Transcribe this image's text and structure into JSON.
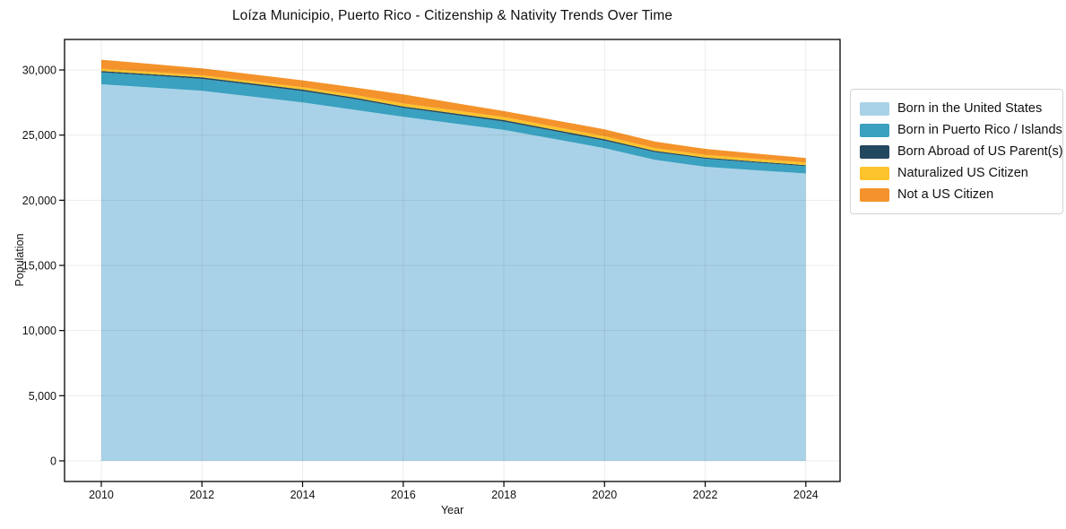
{
  "chart_data": {
    "type": "area",
    "stacked": true,
    "title": "Loíza Municipio, Puerto Rico - Citizenship & Nativity Trends Over Time",
    "xlabel": "Year",
    "ylabel": "Population",
    "grid": true,
    "legend_position": "right-outside",
    "xlim": [
      2009.27,
      2024.68
    ],
    "ylim": [
      -1583,
      32340
    ],
    "xticks": [
      2010,
      2012,
      2014,
      2016,
      2018,
      2020,
      2022,
      2024
    ],
    "yticks": [
      0,
      5000,
      10000,
      15000,
      20000,
      25000,
      30000
    ],
    "x": [
      2010,
      2011,
      2012,
      2013,
      2014,
      2015,
      2016,
      2017,
      2018,
      2019,
      2020,
      2021,
      2022,
      2023,
      2024
    ],
    "series": [
      {
        "name": "Born in the United States",
        "color": "#a9d2e8",
        "values": [
          28900,
          28650,
          28400,
          27950,
          27500,
          26950,
          26400,
          25900,
          25400,
          24700,
          24000,
          23100,
          22570,
          22300,
          22050
        ]
      },
      {
        "name": "Born in Puerto Rico / Islands",
        "color": "#3aa1c0",
        "values": [
          915,
          915,
          915,
          900,
          880,
          840,
          690,
          665,
          640,
          600,
          570,
          595,
          620,
          595,
          570
        ]
      },
      {
        "name": "Born Abroad of US Parent(s)",
        "color": "#23495e",
        "values": [
          100,
          108,
          115,
          115,
          115,
          112,
          110,
          113,
          115,
          115,
          115,
          100,
          90,
          80,
          70
        ]
      },
      {
        "name": "Naturalized US Citizen",
        "color": "#fcc32d",
        "values": [
          180,
          170,
          160,
          170,
          180,
          205,
          230,
          230,
          230,
          230,
          230,
          215,
          205,
          205,
          210
        ]
      },
      {
        "name": "Not a US Citizen",
        "color": "#f4932b",
        "values": [
          690,
          610,
          530,
          530,
          530,
          570,
          690,
          575,
          460,
          500,
          530,
          490,
          460,
          400,
          345
        ]
      }
    ]
  }
}
